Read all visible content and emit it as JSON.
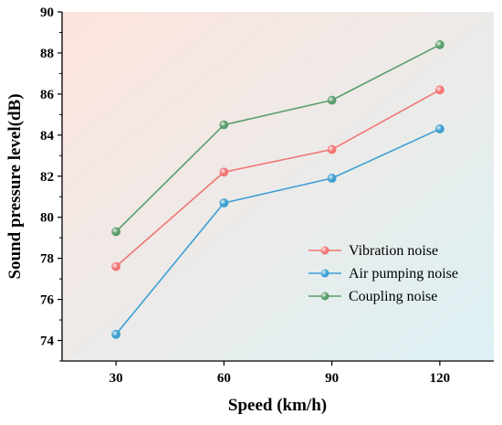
{
  "chart_data": {
    "type": "line",
    "xlabel": "Speed (km/h)",
    "ylabel": "Sound pressure level(dB)",
    "x": [
      30,
      60,
      90,
      120
    ],
    "categories": [
      "30",
      "60",
      "90",
      "120"
    ],
    "ylim": [
      73,
      90
    ],
    "yticks": [
      74,
      76,
      78,
      80,
      82,
      84,
      86,
      88,
      90
    ],
    "grid": false,
    "legend_position": "bottom-right",
    "series": [
      {
        "name": "Vibration noise",
        "color": "#f07673",
        "values": [
          77.6,
          82.2,
          83.3,
          86.2
        ]
      },
      {
        "name": "Air pumping noise",
        "color": "#3c9fd3",
        "values": [
          74.3,
          80.7,
          81.9,
          84.3
        ]
      },
      {
        "name": "Coupling noise",
        "color": "#5a9e6c",
        "values": [
          79.3,
          84.5,
          85.7,
          88.4
        ]
      }
    ],
    "background_gradient": [
      "#fde4dd",
      "#dcf1f4"
    ]
  }
}
